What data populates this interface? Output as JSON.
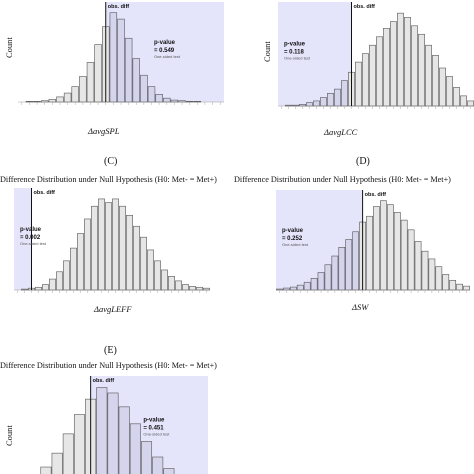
{
  "panels": [
    {
      "id": "A",
      "letter": "",
      "title": "",
      "ylabel": "Count",
      "xlabel": "ΔavgSPL",
      "obs_label": "obs. diff",
      "pvalue_label": "p-value",
      "pvalue": "= 0.549",
      "test_label": "One-sided test"
    },
    {
      "id": "B",
      "letter": "",
      "title": "",
      "ylabel": "Count",
      "xlabel": "ΔavgLCC",
      "obs_label": "obs. diff",
      "pvalue_label": "p-value",
      "pvalue": "= 0.118",
      "test_label": "One-sided test"
    },
    {
      "id": "C",
      "letter": "(C)",
      "title": "Difference Distribution under Null Hypothesis (H0: Met- = Met+)",
      "ylabel": "Count",
      "xlabel": "ΔavgLEFF",
      "obs_label": "obs. diff",
      "pvalue_label": "p-value",
      "pvalue": "= 0.002",
      "test_label": "One-sided test"
    },
    {
      "id": "D",
      "letter": "(D)",
      "title": "Difference Distribution under Null Hypothesis (H0: Met- = Met+)",
      "ylabel": "Count",
      "xlabel": "ΔSW",
      "obs_label": "obs. diff",
      "pvalue_label": "p-value",
      "pvalue": "= 0.252",
      "test_label": "One-sided test"
    },
    {
      "id": "E",
      "letter": "(E)",
      "title": "Difference Distribution under Null Hypothesis (H0: Met- = Met+)",
      "ylabel": "Count",
      "xlabel": "",
      "obs_label": "obs. diff",
      "pvalue_label": "p-value",
      "pvalue": "= 0.451",
      "test_label": "One-sided test"
    }
  ],
  "colors": {
    "shade": "#e4e5fb",
    "bar_fill": "#e6e6e6",
    "bar_fill_shaded": "#d4d5ec",
    "bar_stroke": "#555555",
    "obs_line": "#111111"
  },
  "chart_data": [
    {
      "type": "bar",
      "panel": "A",
      "xlabel": "ΔavgSPL",
      "ylabel": "Count",
      "values": [
        0,
        1,
        1,
        2,
        4,
        8,
        14,
        24,
        40,
        62,
        90,
        118,
        140,
        130,
        100,
        68,
        42,
        24,
        12,
        6,
        3,
        2,
        1,
        1,
        0,
        0,
        0
      ],
      "obs_index": 11,
      "shaded_side": "right",
      "p_value": 0.549
    },
    {
      "type": "bar",
      "panel": "B",
      "xlabel": "ΔavgLCC",
      "ylabel": "Count",
      "values": [
        0,
        1,
        1,
        2,
        4,
        6,
        10,
        15,
        20,
        30,
        40,
        52,
        62,
        72,
        82,
        92,
        100,
        110,
        105,
        95,
        85,
        72,
        60,
        45,
        35,
        22,
        12,
        6
      ],
      "obs_index": 10,
      "shaded_side": "left",
      "p_value": 0.118
    },
    {
      "type": "bar",
      "panel": "C",
      "xlabel": "ΔavgLEFF",
      "ylabel": "Count",
      "values": [
        0,
        1,
        2,
        3,
        6,
        12,
        20,
        32,
        46,
        62,
        78,
        92,
        100,
        96,
        100,
        92,
        82,
        70,
        58,
        44,
        32,
        22,
        15,
        10,
        6,
        4,
        3,
        2
      ],
      "obs_index": 2,
      "shaded_side": "left",
      "p_value": 0.002
    },
    {
      "type": "bar",
      "panel": "D",
      "xlabel": "ΔSW",
      "ylabel": "Count",
      "values": [
        1,
        2,
        3,
        5,
        8,
        12,
        18,
        26,
        35,
        44,
        52,
        60,
        70,
        76,
        86,
        92,
        88,
        80,
        72,
        62,
        50,
        40,
        32,
        24,
        16,
        10,
        6,
        4
      ],
      "obs_index": 12,
      "shaded_side": "left",
      "p_value": 0.252
    },
    {
      "type": "bar",
      "panel": "E",
      "xlabel": "",
      "ylabel": "Count",
      "values": [
        4,
        10,
        22,
        40,
        65,
        90,
        110,
        125,
        118,
        100,
        78,
        55,
        35,
        20,
        10,
        5,
        2
      ],
      "obs_index": 6,
      "shaded_side": "right",
      "p_value": 0.451
    }
  ]
}
